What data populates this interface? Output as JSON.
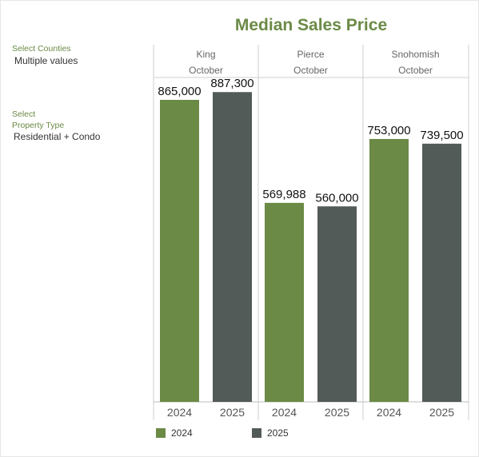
{
  "filters": {
    "counties": {
      "label": "Select Counties",
      "value": "Multiple values"
    },
    "property_type": {
      "label_line1": "Select",
      "label_line2": "Property Type",
      "value": "Residential + Condo"
    }
  },
  "legend": [
    {
      "label": "2024",
      "color": "#6b8a46"
    },
    {
      "label": "2025",
      "color": "#535b59"
    }
  ],
  "chart_data": {
    "type": "bar",
    "title": "Median Sales Price",
    "ylim": [
      0,
      1000000
    ],
    "panels": [
      {
        "county": "King",
        "month": "October",
        "bars": [
          {
            "year": "2024",
            "value": 865000,
            "label": "865,000"
          },
          {
            "year": "2025",
            "value": 887300,
            "label": "887,300"
          }
        ]
      },
      {
        "county": "Pierce",
        "month": "October",
        "bars": [
          {
            "year": "2024",
            "value": 569988,
            "label": "569,988"
          },
          {
            "year": "2025",
            "value": 560000,
            "label": "560,000"
          }
        ]
      },
      {
        "county": "Snohomish",
        "month": "October",
        "bars": [
          {
            "year": "2024",
            "value": 753000,
            "label": "753,000"
          },
          {
            "year": "2025",
            "value": 739500,
            "label": "739,500"
          }
        ]
      }
    ],
    "colors": {
      "2024": "#6b8a46",
      "2025": "#535b59"
    },
    "grid": false,
    "legend_position": "bottom"
  }
}
